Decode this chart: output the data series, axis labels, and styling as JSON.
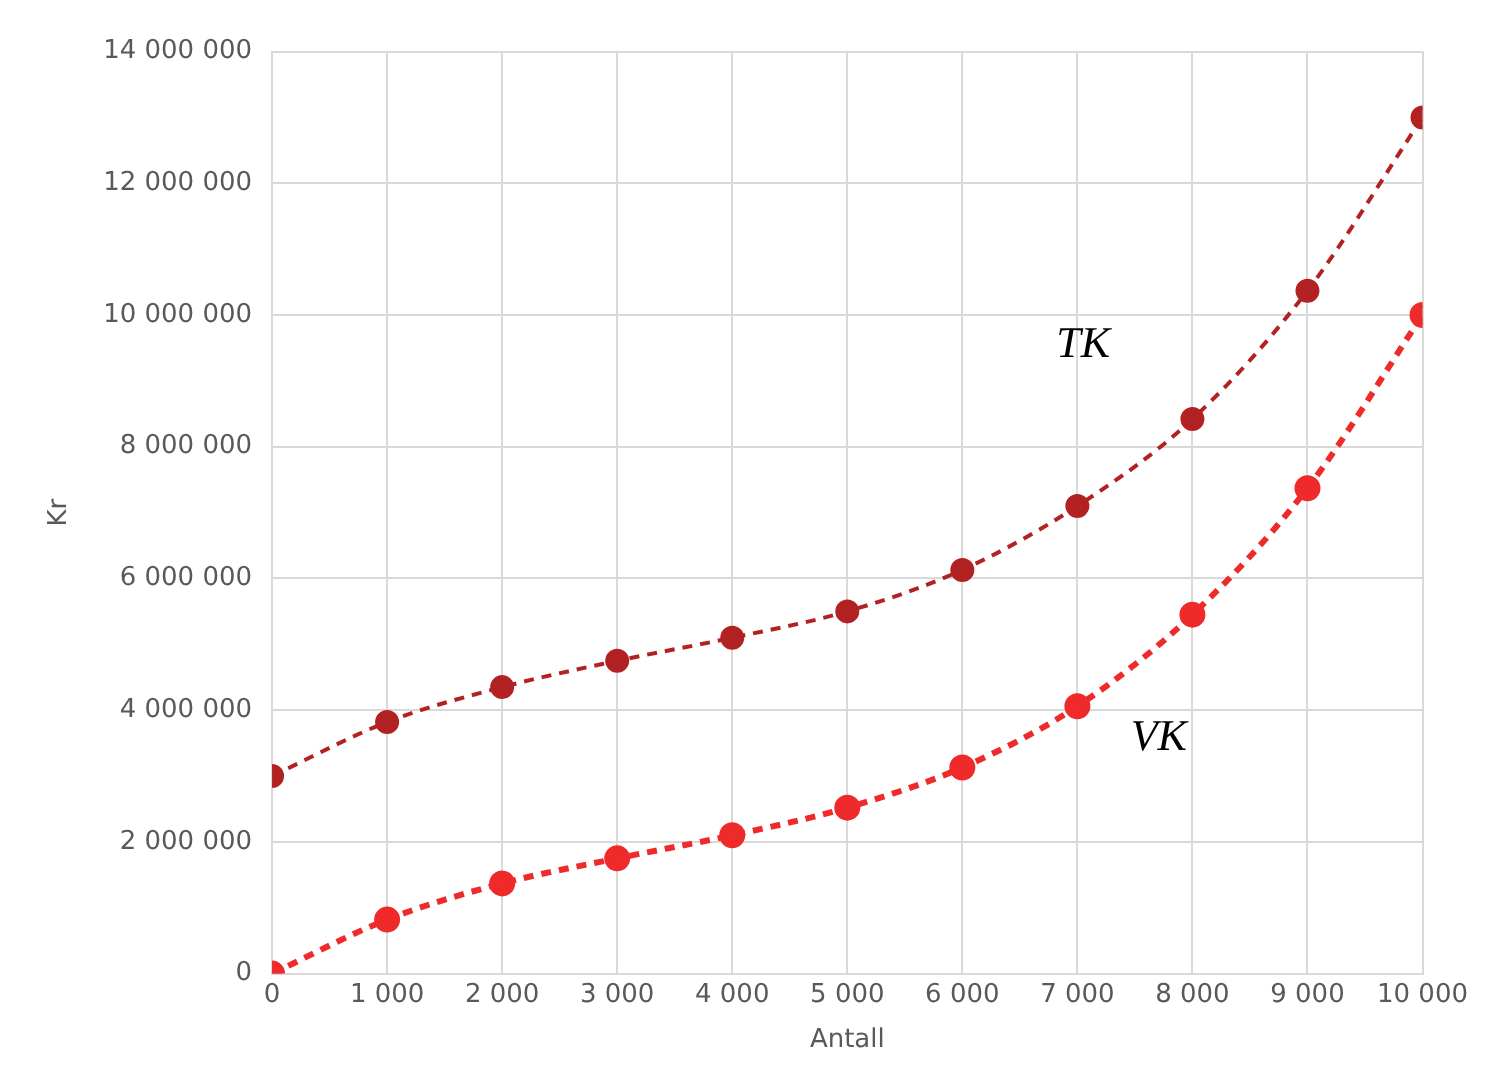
{
  "chart_data": {
    "type": "line",
    "xlabel": "Antall",
    "ylabel": "Kr",
    "x": [
      0,
      1000,
      2000,
      3000,
      4000,
      5000,
      6000,
      7000,
      8000,
      9000,
      10000
    ],
    "series": [
      {
        "name": "TK",
        "color": "#b22222",
        "values": [
          3000000,
          3820000,
          4350000,
          4750000,
          5100000,
          5500000,
          6130000,
          7100000,
          8420000,
          10370000,
          13000000
        ]
      },
      {
        "name": "VK",
        "color": "#ee2a2a",
        "values": [
          0,
          820000,
          1370000,
          1750000,
          2100000,
          2520000,
          3130000,
          4060000,
          5450000,
          7370000,
          10000000
        ]
      }
    ],
    "xlim": [
      0,
      10000
    ],
    "xticks": [
      0,
      {
        "value": 1000,
        "label": "1 000"
      },
      {
        "value": 2000,
        "label": "2 000"
      },
      {
        "value": 3000,
        "label": "3 000"
      },
      {
        "value": 4000,
        "label": "4 000"
      },
      {
        "value": 5000,
        "label": "5 000"
      },
      {
        "value": 6000,
        "label": "6 000"
      },
      {
        "value": 7000,
        "label": "7 000"
      },
      {
        "value": 8000,
        "label": "8 000"
      },
      {
        "value": 9000,
        "label": "9 000"
      },
      {
        "value": 10000,
        "label": "10 000"
      }
    ],
    "ylim": [
      0,
      14000000
    ],
    "yticks": [
      0,
      {
        "value": 2000000,
        "label": "2 000 000"
      },
      {
        "value": 4000000,
        "label": "4 000 000"
      },
      {
        "value": 6000000,
        "label": "6 000 000"
      },
      {
        "value": 8000000,
        "label": "8 000 000"
      },
      {
        "value": 10000000,
        "label": "10 000 000"
      },
      {
        "value": 12000000,
        "label": "12 000 000"
      },
      {
        "value": 14000000,
        "label": "14 000 000"
      }
    ],
    "grid": true,
    "legend": false,
    "marker": "circle",
    "line_style": "dashed"
  }
}
